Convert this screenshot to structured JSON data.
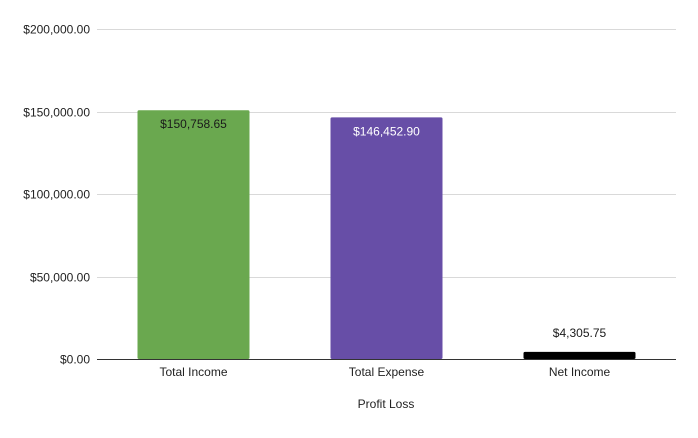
{
  "chart_data": {
    "type": "bar",
    "title": "",
    "xlabel": "Profit Loss",
    "ylabel": "",
    "categories": [
      "Total Income",
      "Total Expense",
      "Net Income"
    ],
    "values": [
      150758.65,
      146452.9,
      4305.75
    ],
    "data_labels": [
      "$150,758.65",
      "$146,452.90",
      "$4,305.75"
    ],
    "bar_colors": [
      "#6aa84f",
      "#674ea7",
      "#000000"
    ],
    "data_label_colors": [
      "#1a1a1a",
      "#ffffff",
      "#1a1a1a"
    ],
    "data_label_positions": [
      "inside",
      "inside",
      "outside"
    ],
    "ylim": [
      0,
      200000
    ],
    "y_ticks": [
      0,
      50000,
      100000,
      150000,
      200000
    ],
    "y_tick_labels": [
      "$0.00",
      "$50,000.00",
      "$100,000.00",
      "$150,000.00",
      "$200,000.00"
    ],
    "grid": true,
    "legend": "none"
  }
}
